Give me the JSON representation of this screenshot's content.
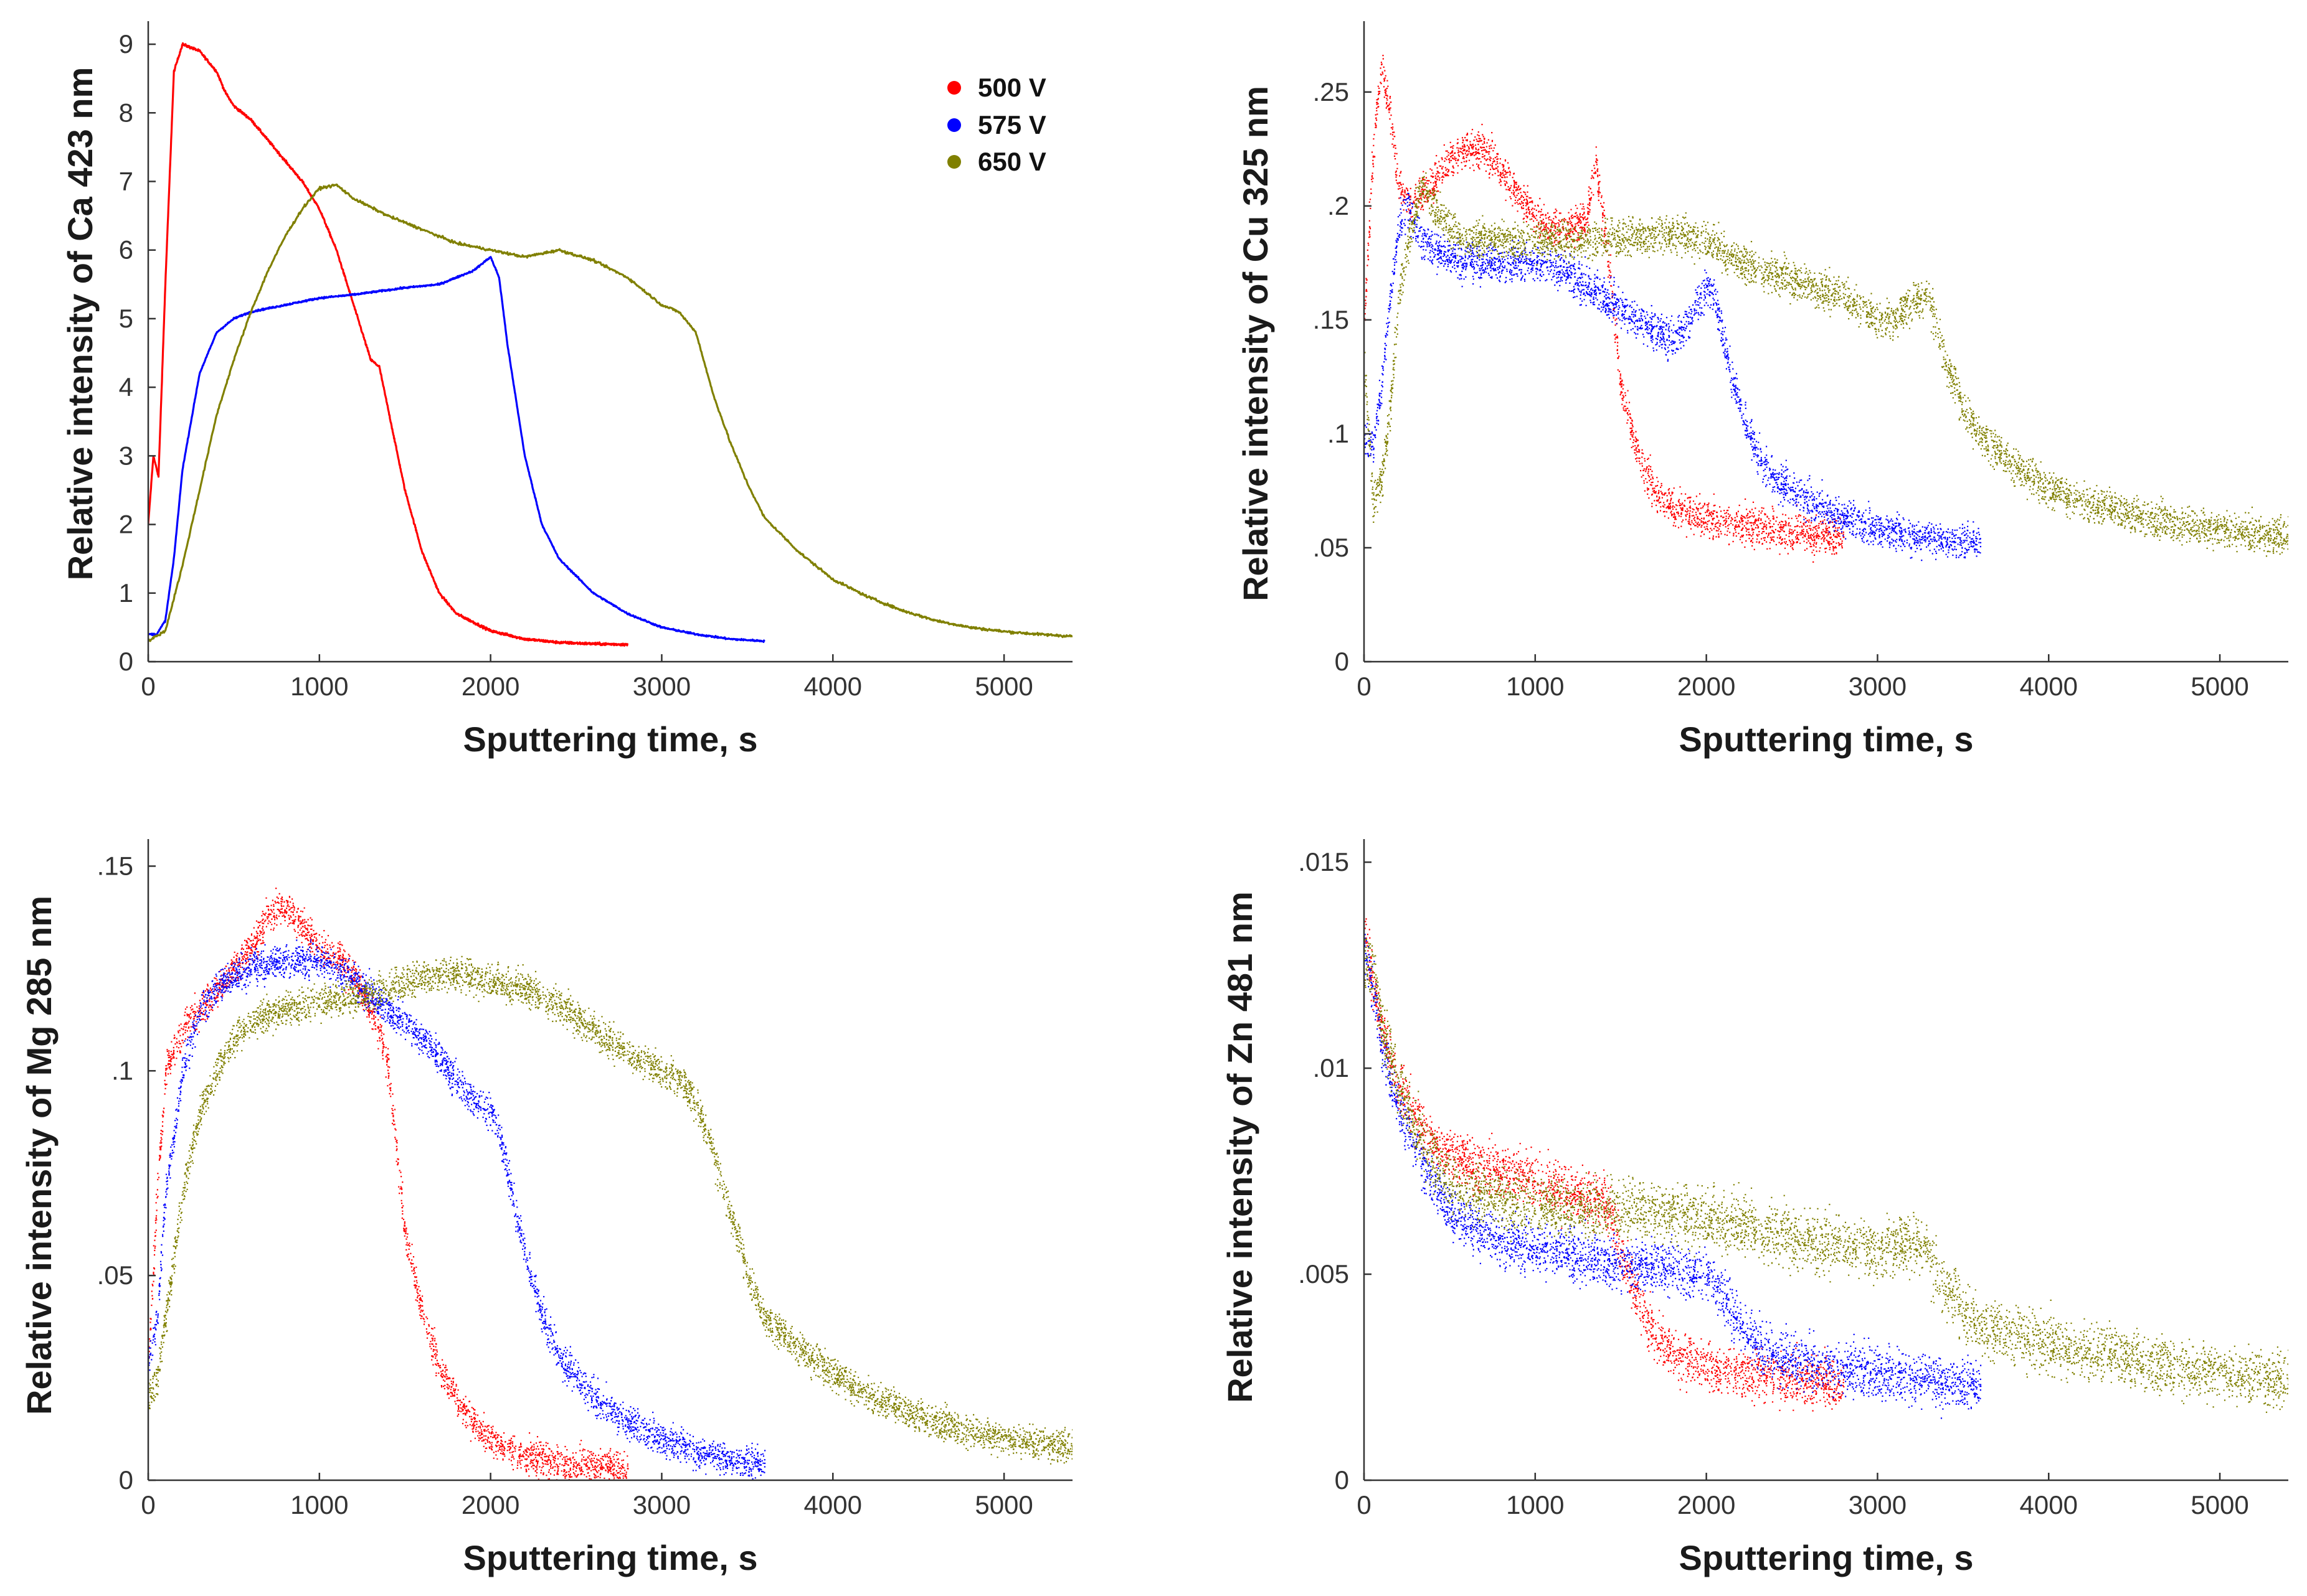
{
  "figure": {
    "series_colors": {
      "500 V": "#ff0000",
      "575 V": "#0000ff",
      "650 V": "#808000"
    }
  },
  "legend": {
    "items": [
      {
        "label": "500 V",
        "color": "#ff0000"
      },
      {
        "label": "575 V",
        "color": "#0000ff"
      },
      {
        "label": "650 V",
        "color": "#808000"
      }
    ]
  },
  "chart_data": [
    {
      "id": "ca",
      "type": "line",
      "xlabel": "Sputtering time, s",
      "ylabel": "Relative intensity of  Ca 423 nm",
      "xlim": [
        0,
        5400
      ],
      "ylim": [
        0,
        9.3
      ],
      "xticks": [
        0,
        1000,
        2000,
        3000,
        4000,
        5000
      ],
      "yticks": [
        0,
        1,
        2,
        3,
        4,
        5,
        6,
        7,
        8,
        9
      ],
      "legend": "top-right",
      "series": [
        {
          "name": "500 V",
          "color": "#ff0000",
          "noise": 0.03,
          "x": [
            0,
            30,
            60,
            100,
            150,
            200,
            300,
            400,
            450,
            500,
            600,
            700,
            800,
            900,
            1000,
            1100,
            1200,
            1300,
            1350,
            1400,
            1500,
            1600,
            1700,
            1800,
            2000,
            2200,
            2400,
            2600,
            2800
          ],
          "y": [
            2.0,
            3.0,
            2.7,
            5.5,
            8.6,
            9.0,
            8.9,
            8.6,
            8.3,
            8.1,
            7.9,
            7.6,
            7.3,
            7.0,
            6.6,
            6.0,
            5.2,
            4.4,
            4.3,
            3.7,
            2.5,
            1.6,
            1.0,
            0.7,
            0.45,
            0.33,
            0.28,
            0.26,
            0.25
          ]
        },
        {
          "name": "575 V",
          "color": "#0000ff",
          "noise": 0.02,
          "x": [
            0,
            50,
            100,
            150,
            200,
            300,
            400,
            500,
            600,
            800,
            1000,
            1200,
            1500,
            1700,
            1900,
            2000,
            2050,
            2100,
            2200,
            2300,
            2400,
            2600,
            2800,
            3000,
            3200,
            3400,
            3600
          ],
          "y": [
            0.4,
            0.4,
            0.6,
            1.5,
            2.8,
            4.2,
            4.8,
            5.0,
            5.1,
            5.2,
            5.3,
            5.35,
            5.45,
            5.5,
            5.7,
            5.9,
            5.6,
            4.6,
            3.0,
            2.0,
            1.5,
            1.0,
            0.7,
            0.5,
            0.4,
            0.33,
            0.3
          ]
        },
        {
          "name": "650 V",
          "color": "#808000",
          "noise": 0.03,
          "x": [
            0,
            100,
            200,
            300,
            400,
            500,
            600,
            700,
            800,
            900,
            1000,
            1100,
            1200,
            1400,
            1600,
            1800,
            2000,
            2200,
            2400,
            2600,
            2800,
            3000,
            3100,
            3200,
            3300,
            3400,
            3500,
            3600,
            3800,
            4000,
            4200,
            4400,
            4600,
            4800,
            5000,
            5200,
            5400
          ],
          "y": [
            0.3,
            0.45,
            1.4,
            2.5,
            3.6,
            4.4,
            5.1,
            5.7,
            6.2,
            6.6,
            6.9,
            6.95,
            6.75,
            6.5,
            6.3,
            6.1,
            6.0,
            5.9,
            6.0,
            5.85,
            5.6,
            5.2,
            5.1,
            4.8,
            3.9,
            3.2,
            2.6,
            2.1,
            1.6,
            1.2,
            0.95,
            0.75,
            0.6,
            0.5,
            0.44,
            0.4,
            0.37
          ]
        }
      ]
    },
    {
      "id": "cu",
      "type": "scatter",
      "xlabel": "Sputtering time, s",
      "ylabel": "Relative intensity of  Cu 325 nm",
      "xlim": [
        0,
        5400
      ],
      "ylim": [
        0,
        0.28
      ],
      "xticks": [
        0,
        1000,
        2000,
        3000,
        4000,
        5000
      ],
      "yticks": [
        0,
        0.05,
        0.1,
        0.15,
        0.2,
        0.25
      ],
      "series": [
        {
          "name": "500 V",
          "color": "#ff0000",
          "noise": 0.008,
          "x": [
            0,
            40,
            80,
            100,
            150,
            200,
            250,
            300,
            400,
            500,
            600,
            700,
            800,
            900,
            1000,
            1100,
            1200,
            1300,
            1350,
            1400,
            1450,
            1500,
            1600,
            1700,
            1800,
            2000,
            2200,
            2400,
            2600,
            2800
          ],
          "y": [
            0.15,
            0.21,
            0.25,
            0.26,
            0.24,
            0.21,
            0.2,
            0.205,
            0.21,
            0.22,
            0.225,
            0.225,
            0.215,
            0.205,
            0.195,
            0.19,
            0.19,
            0.195,
            0.22,
            0.19,
            0.16,
            0.12,
            0.09,
            0.075,
            0.068,
            0.063,
            0.06,
            0.058,
            0.056,
            0.055
          ]
        },
        {
          "name": "575 V",
          "color": "#0000ff",
          "noise": 0.008,
          "x": [
            0,
            50,
            100,
            150,
            200,
            250,
            300,
            400,
            600,
            800,
            1000,
            1200,
            1400,
            1600,
            1800,
            1900,
            2000,
            2050,
            2100,
            2200,
            2300,
            2400,
            2600,
            2800,
            3000,
            3200,
            3400,
            3600
          ],
          "y": [
            0.1,
            0.095,
            0.12,
            0.16,
            0.19,
            0.2,
            0.19,
            0.18,
            0.175,
            0.175,
            0.175,
            0.17,
            0.16,
            0.15,
            0.14,
            0.15,
            0.165,
            0.16,
            0.14,
            0.11,
            0.09,
            0.08,
            0.07,
            0.063,
            0.058,
            0.055,
            0.053,
            0.052
          ]
        },
        {
          "name": "650 V",
          "color": "#808000",
          "noise": 0.008,
          "x": [
            0,
            50,
            100,
            150,
            200,
            300,
            350,
            400,
            500,
            600,
            800,
            1000,
            1200,
            1400,
            1600,
            1800,
            2000,
            2200,
            2400,
            2600,
            2800,
            2900,
            3000,
            3100,
            3200,
            3300,
            3400,
            3500,
            3600,
            3800,
            4000,
            4200,
            4400,
            4600,
            4800,
            5000,
            5200,
            5400
          ],
          "y": [
            0.13,
            0.07,
            0.08,
            0.11,
            0.16,
            0.2,
            0.21,
            0.2,
            0.19,
            0.185,
            0.185,
            0.185,
            0.185,
            0.185,
            0.187,
            0.188,
            0.185,
            0.175,
            0.17,
            0.165,
            0.16,
            0.155,
            0.15,
            0.15,
            0.158,
            0.16,
            0.13,
            0.11,
            0.1,
            0.085,
            0.076,
            0.07,
            0.066,
            0.062,
            0.06,
            0.058,
            0.056,
            0.055
          ]
        }
      ]
    },
    {
      "id": "mg",
      "type": "scatter",
      "xlabel": "Sputtering time, s",
      "ylabel": "Relative intensity of  Mg 285 nm",
      "xlim": [
        0,
        5400
      ],
      "ylim": [
        0,
        0.156
      ],
      "xticks": [
        0,
        1000,
        2000,
        3000,
        4000,
        5000
      ],
      "yticks": [
        0,
        0.05,
        0.1,
        0.15
      ],
      "series": [
        {
          "name": "500 V",
          "color": "#ff0000",
          "noise": 0.004,
          "x": [
            0,
            50,
            100,
            200,
            300,
            400,
            500,
            600,
            700,
            800,
            900,
            1000,
            1100,
            1200,
            1300,
            1350,
            1400,
            1450,
            1500,
            1600,
            1700,
            1800,
            1900,
            2000,
            2200,
            2400,
            2600,
            2800
          ],
          "y": [
            0.03,
            0.07,
            0.1,
            0.11,
            0.115,
            0.12,
            0.125,
            0.13,
            0.138,
            0.14,
            0.135,
            0.13,
            0.128,
            0.123,
            0.115,
            0.11,
            0.1,
            0.08,
            0.06,
            0.04,
            0.028,
            0.02,
            0.014,
            0.01,
            0.006,
            0.004,
            0.0035,
            0.003
          ]
        },
        {
          "name": "575 V",
          "color": "#0000ff",
          "noise": 0.004,
          "x": [
            0,
            50,
            100,
            200,
            300,
            400,
            500,
            600,
            800,
            1000,
            1200,
            1400,
            1500,
            1600,
            1700,
            1800,
            1900,
            2000,
            2050,
            2100,
            2150,
            2200,
            2300,
            2400,
            2600,
            2800,
            3000,
            3200,
            3400,
            3600
          ],
          "y": [
            0.03,
            0.04,
            0.07,
            0.1,
            0.115,
            0.12,
            0.123,
            0.125,
            0.127,
            0.127,
            0.122,
            0.115,
            0.112,
            0.108,
            0.103,
            0.097,
            0.093,
            0.09,
            0.085,
            0.075,
            0.065,
            0.055,
            0.04,
            0.03,
            0.02,
            0.014,
            0.01,
            0.007,
            0.005,
            0.004
          ]
        },
        {
          "name": "650 V",
          "color": "#808000",
          "noise": 0.004,
          "x": [
            0,
            50,
            100,
            200,
            300,
            400,
            500,
            600,
            800,
            1000,
            1200,
            1400,
            1600,
            1800,
            2000,
            2200,
            2400,
            2600,
            2800,
            3000,
            3100,
            3200,
            3300,
            3400,
            3500,
            3600,
            3800,
            4000,
            4200,
            4400,
            4600,
            4800,
            5000,
            5200,
            5400
          ],
          "y": [
            0.02,
            0.025,
            0.04,
            0.07,
            0.09,
            0.1,
            0.108,
            0.112,
            0.115,
            0.117,
            0.118,
            0.12,
            0.123,
            0.124,
            0.122,
            0.12,
            0.116,
            0.11,
            0.104,
            0.1,
            0.098,
            0.092,
            0.08,
            0.065,
            0.05,
            0.04,
            0.032,
            0.026,
            0.021,
            0.017,
            0.014,
            0.012,
            0.01,
            0.009,
            0.008
          ]
        }
      ]
    },
    {
      "id": "zn",
      "type": "scatter",
      "xlabel": "Sputtering time, s",
      "ylabel": "Relative intensity of  Zn 481 nm",
      "xlim": [
        0,
        5400
      ],
      "ylim": [
        0,
        0.0155
      ],
      "xticks": [
        0,
        1000,
        2000,
        3000,
        4000,
        5000
      ],
      "yticks": [
        0,
        0.005,
        0.01,
        0.015
      ],
      "series": [
        {
          "name": "500 V",
          "color": "#ff0000",
          "noise": 0.0006,
          "x": [
            0,
            50,
            100,
            200,
            300,
            400,
            500,
            600,
            800,
            1000,
            1200,
            1400,
            1500,
            1600,
            1700,
            1800,
            2000,
            2200,
            2400,
            2600,
            2800
          ],
          "y": [
            0.0135,
            0.012,
            0.011,
            0.0095,
            0.0088,
            0.0082,
            0.0079,
            0.0077,
            0.0075,
            0.0073,
            0.007,
            0.0068,
            0.0055,
            0.0043,
            0.0035,
            0.0031,
            0.0028,
            0.0026,
            0.0025,
            0.0024,
            0.0023
          ]
        },
        {
          "name": "575 V",
          "color": "#0000ff",
          "noise": 0.0006,
          "x": [
            0,
            50,
            100,
            200,
            300,
            400,
            500,
            600,
            800,
            1000,
            1200,
            1400,
            1600,
            1800,
            2000,
            2100,
            2200,
            2300,
            2400,
            2600,
            2800,
            3000,
            3200,
            3400,
            3600
          ],
          "y": [
            0.013,
            0.012,
            0.0105,
            0.009,
            0.008,
            0.0072,
            0.0065,
            0.0062,
            0.0058,
            0.0056,
            0.0055,
            0.0053,
            0.0052,
            0.0051,
            0.005,
            0.0045,
            0.0038,
            0.0033,
            0.003,
            0.0028,
            0.0027,
            0.0026,
            0.0025,
            0.0024,
            0.0023
          ]
        },
        {
          "name": "650 V",
          "color": "#808000",
          "noise": 0.0007,
          "x": [
            0,
            50,
            100,
            200,
            300,
            400,
            500,
            600,
            800,
            1000,
            1200,
            1400,
            1600,
            1800,
            2000,
            2200,
            2400,
            2600,
            2800,
            3000,
            3200,
            3300,
            3400,
            3500,
            3600,
            3800,
            4000,
            4200,
            4400,
            4600,
            4800,
            5000,
            5200,
            5400
          ],
          "y": [
            0.0125,
            0.0125,
            0.011,
            0.0095,
            0.0085,
            0.0078,
            0.0072,
            0.007,
            0.0068,
            0.0067,
            0.0066,
            0.0066,
            0.0066,
            0.0065,
            0.0064,
            0.0062,
            0.006,
            0.0058,
            0.0057,
            0.0056,
            0.0058,
            0.0055,
            0.0046,
            0.0041,
            0.0038,
            0.0035,
            0.0033,
            0.0031,
            0.003,
            0.0028,
            0.0027,
            0.0026,
            0.0025,
            0.0024
          ]
        }
      ]
    }
  ]
}
